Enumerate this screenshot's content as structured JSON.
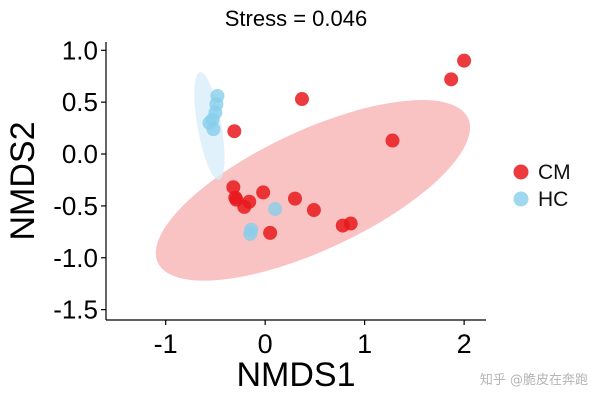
{
  "chart_data": {
    "type": "scatter",
    "title": "Stress = 0.046",
    "xlabel": "NMDS1",
    "ylabel": "NMDS2",
    "xlim": [
      -1.6,
      2.22
    ],
    "ylim": [
      -1.6,
      1.08
    ],
    "xticks": [
      -1,
      0,
      1,
      2
    ],
    "xtick_labels": [
      "-1",
      "0",
      "1",
      "2"
    ],
    "yticks": [
      1.0,
      0.5,
      0.0,
      -0.5,
      -1.0,
      -1.5
    ],
    "ytick_labels": [
      "1.0",
      "0.5",
      "0.0",
      "-0.5",
      "-1.0",
      "-1.5"
    ],
    "grid": false,
    "legend_position": "right",
    "series": [
      {
        "name": "CM",
        "color": "#e8191c",
        "ellipse_color": "#f8a3a3",
        "x": [
          2.0,
          1.87,
          0.37,
          1.28,
          -0.31,
          -0.32,
          -0.3,
          -0.16,
          -0.02,
          -0.21,
          0.3,
          0.49,
          0.86,
          0.78,
          0.05,
          -0.29
        ],
        "y": [
          0.9,
          0.72,
          0.53,
          0.13,
          0.22,
          -0.32,
          -0.42,
          -0.46,
          -0.37,
          -0.51,
          -0.43,
          -0.54,
          -0.67,
          -0.69,
          -0.76,
          -0.44
        ]
      },
      {
        "name": "HC",
        "color": "#87ceeb",
        "ellipse_color": "#d6ecfa",
        "x": [
          -0.48,
          -0.49,
          -0.5,
          -0.53,
          -0.56,
          -0.52,
          -0.14,
          -0.15,
          0.1
        ],
        "y": [
          0.56,
          0.48,
          0.4,
          0.33,
          0.3,
          0.24,
          -0.73,
          -0.77,
          -0.53
        ]
      }
    ],
    "ellipses": [
      {
        "series": "CM",
        "cx": 0.48,
        "cy": -0.35,
        "rx": 1.72,
        "ry": 0.6,
        "angle_deg": 25
      },
      {
        "series": "HC",
        "cx": -0.56,
        "cy": 0.27,
        "rx": 0.55,
        "ry": 0.12,
        "angle_deg": 100
      }
    ]
  },
  "watermark": "知乎 @脆皮在奔跑"
}
